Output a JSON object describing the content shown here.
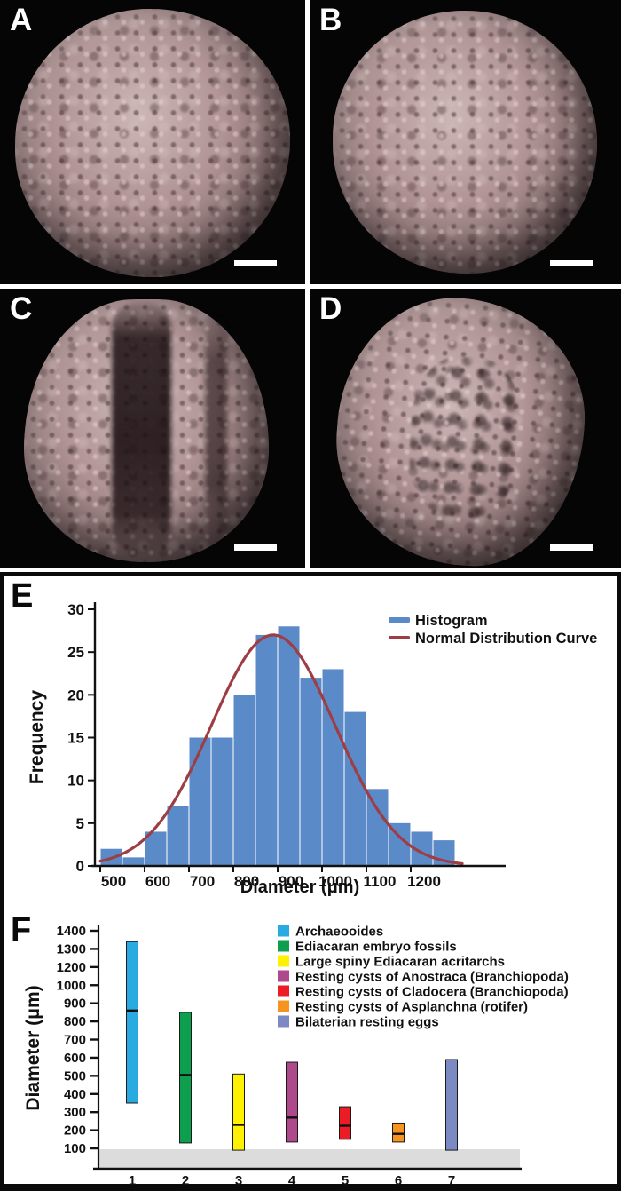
{
  "figure": {
    "panels": [
      {
        "label": "A",
        "type": "ct-render",
        "scale_bar": true
      },
      {
        "label": "B",
        "type": "ct-render",
        "scale_bar": true
      },
      {
        "label": "C",
        "type": "ct-render",
        "scale_bar": true
      },
      {
        "label": "D",
        "type": "ct-render",
        "scale_bar": true
      },
      {
        "label": "E",
        "type": "chart"
      },
      {
        "label": "F",
        "type": "chart"
      }
    ]
  },
  "chart_data": [
    {
      "id": "size-histogram",
      "panel": "E",
      "type": "bar",
      "title": "",
      "xlabel": "Diameter (μm)",
      "ylabel": "Frequency",
      "bin_start": 470,
      "bin_width": 50,
      "values": [
        2,
        1,
        4,
        7,
        15,
        15,
        20,
        27,
        28,
        22,
        23,
        18,
        9,
        5,
        4,
        3
      ],
      "x_ticks": [
        500,
        600,
        700,
        800,
        900,
        1000,
        1100,
        1200
      ],
      "y_ticks": [
        0,
        5,
        10,
        15,
        20,
        25,
        30
      ],
      "ylim": [
        0,
        30
      ],
      "xlim": [
        460,
        1330
      ],
      "grid": false,
      "bar_color": "#5b8ac9",
      "legend_position": "top-right",
      "legend": [
        {
          "label": "Histogram",
          "color": "#5b8ac9",
          "style": "thick-line"
        },
        {
          "label": "Normal Distribution Curve",
          "color": "#9c3e44",
          "style": "line"
        }
      ],
      "curve": {
        "name": "Normal Distribution Curve",
        "mean": 860,
        "sd": 140,
        "peak": 27,
        "color": "#9c3e44"
      }
    },
    {
      "id": "diameter-ranges",
      "panel": "F",
      "type": "range-bar",
      "title": "",
      "xlabel": "",
      "ylabel": "Diameter (μm)",
      "y_tick_labels": [
        "1400",
        "1300",
        "1200",
        "1000",
        "900",
        "800",
        "700",
        "600",
        "500",
        "400",
        "300",
        "200",
        "100"
      ],
      "categories": [
        "1",
        "2",
        "3",
        "4",
        "5",
        "6",
        "7"
      ],
      "grid": false,
      "legend_position": "top-right",
      "series": [
        {
          "label": "Archaeooides",
          "color": "#29abe2",
          "min": 350,
          "max": 1340,
          "median": 860
        },
        {
          "label": "Ediacaran embryo fossils",
          "color": "#0d9e4e",
          "min": 130,
          "max": 850,
          "median": 505
        },
        {
          "label": "Large spiny Ediacaran acritarchs",
          "color": "#fff200",
          "min": 90,
          "max": 510,
          "median": 230
        },
        {
          "label": "Resting cysts of Anostraca (Branchiopoda)",
          "color": "#ae4a8c",
          "min": 135,
          "max": 575,
          "median": 270
        },
        {
          "label": "Resting cysts of Cladocera (Branchiopoda)",
          "color": "#ed1c24",
          "min": 150,
          "max": 330,
          "median": 225
        },
        {
          "label": "Resting cysts of Asplanchna (rotifer)",
          "color": "#f7941e",
          "min": 135,
          "max": 240,
          "median": 180
        },
        {
          "label": "Bilaterian resting eggs",
          "color": "#7b8ac2",
          "min": 90,
          "max": 590,
          "median": null
        }
      ],
      "shaded_band": {
        "from": 0,
        "to": 100,
        "color": "#dcdcdc"
      }
    }
  ]
}
